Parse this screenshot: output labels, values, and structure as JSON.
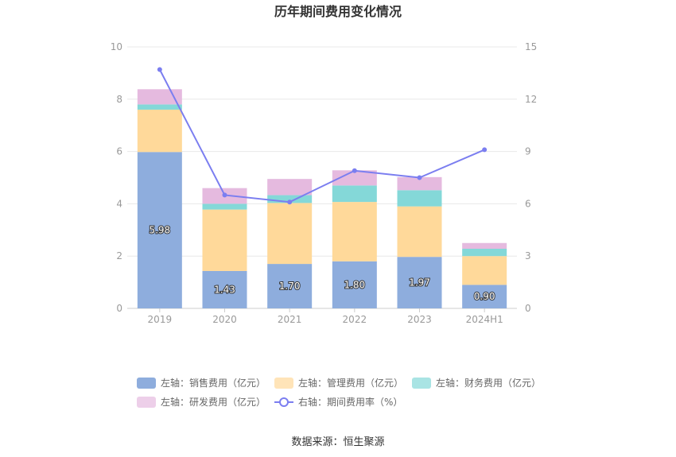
{
  "chart_data": {
    "type": "bar",
    "title": "历年期间费用变化情况",
    "categories": [
      "2019",
      "2020",
      "2021",
      "2022",
      "2023",
      "2024H1"
    ],
    "left_axis": {
      "ylim": [
        0,
        10
      ],
      "ticks": [
        "0",
        "2",
        "4",
        "6",
        "8",
        "10"
      ]
    },
    "right_axis": {
      "ylim": [
        0,
        15
      ],
      "ticks": [
        "0",
        "3",
        "6",
        "9",
        "12",
        "15"
      ]
    },
    "grid": true,
    "legend_position": "bottom",
    "series": [
      {
        "name": "左轴：销售费用（亿元）",
        "type": "bar",
        "color": "#8eaddd",
        "values": [
          5.98,
          1.43,
          1.7,
          1.8,
          1.97,
          0.9
        ],
        "labels": [
          "5.98",
          "1.43",
          "1.70",
          "1.80",
          "1.97",
          "0.90"
        ]
      },
      {
        "name": "左轴：管理费用（亿元）",
        "type": "bar",
        "color": "#ffd99a",
        "values": [
          1.62,
          2.35,
          2.33,
          2.27,
          1.93,
          1.1
        ]
      },
      {
        "name": "左轴：财务费用（亿元）",
        "type": "bar",
        "color": "#84d8d8",
        "values": [
          0.2,
          0.22,
          0.3,
          0.63,
          0.62,
          0.28
        ]
      },
      {
        "name": "左轴：研发费用（亿元）",
        "type": "bar",
        "color": "#e5badf",
        "values": [
          0.58,
          0.6,
          0.62,
          0.58,
          0.5,
          0.22
        ]
      },
      {
        "name": "右轴：期间费用率（%）",
        "type": "line",
        "color": "#7b7ef0",
        "values": [
          13.7,
          6.5,
          6.1,
          7.9,
          7.5,
          9.1
        ]
      }
    ]
  },
  "source": "数据来源：恒生聚源"
}
